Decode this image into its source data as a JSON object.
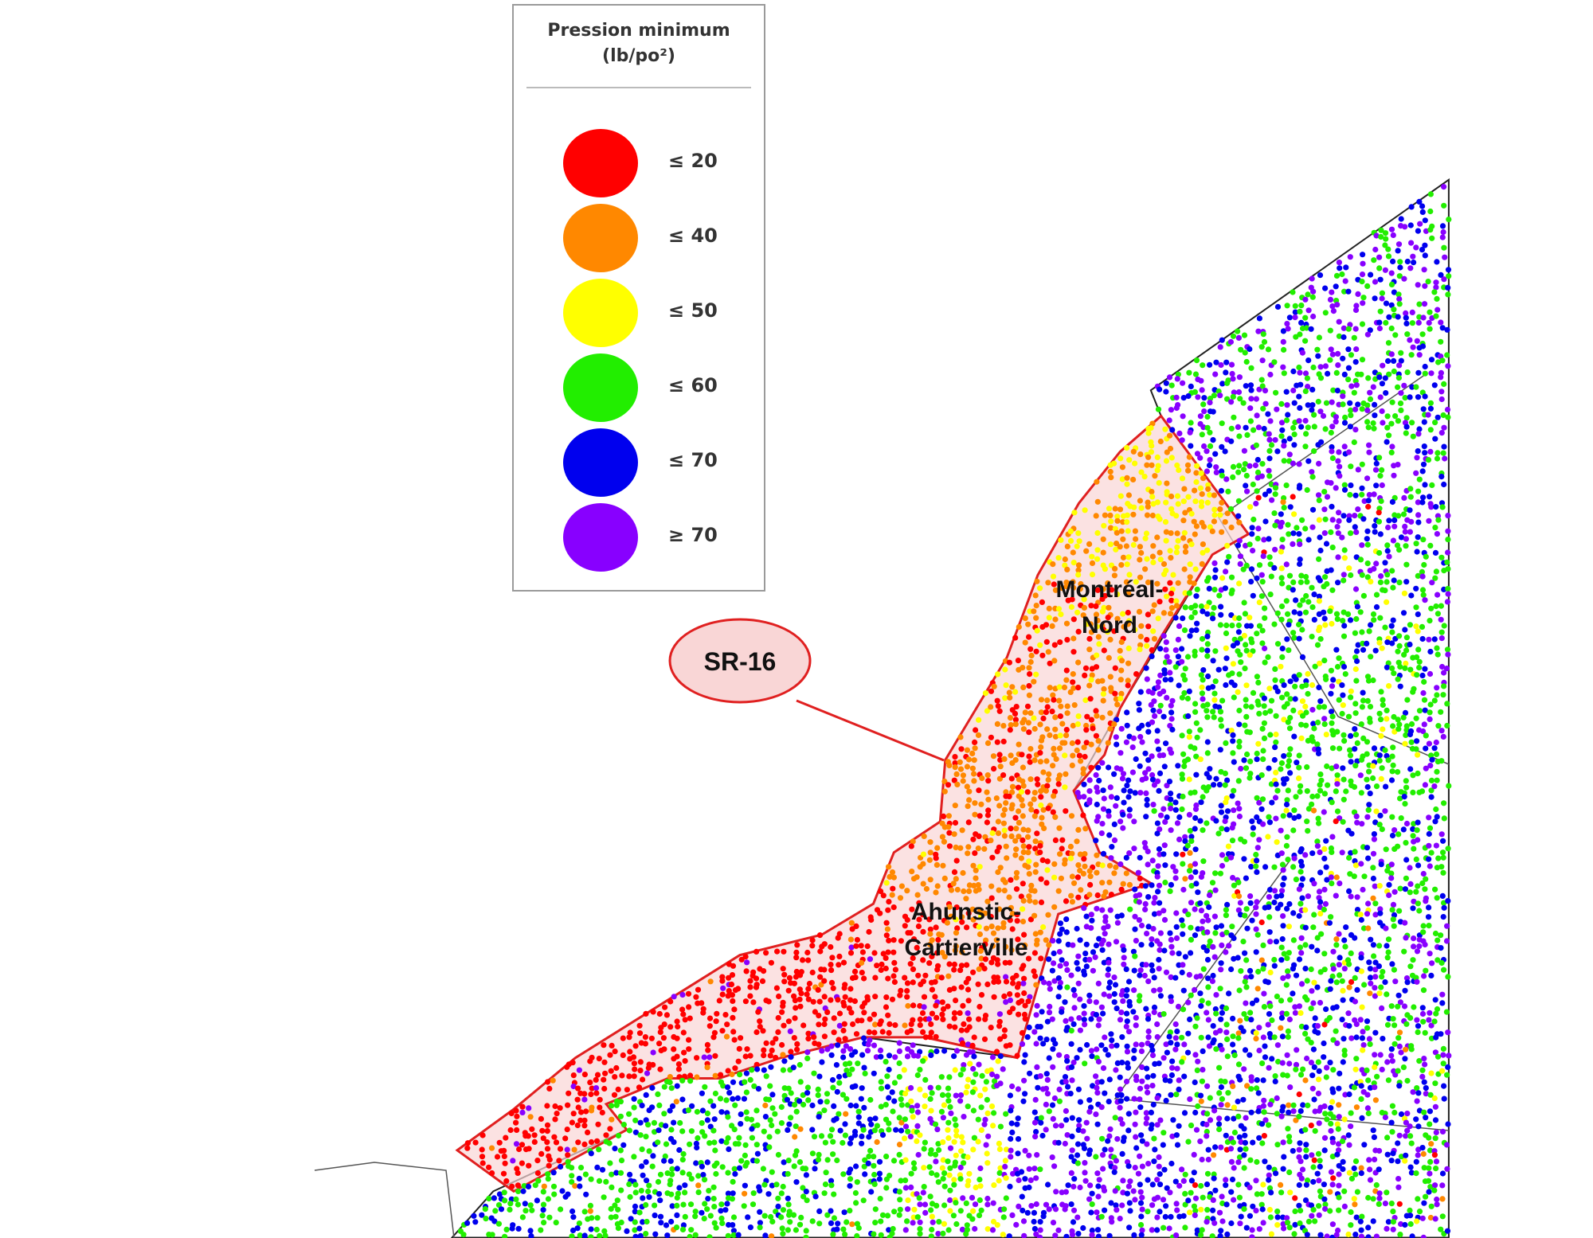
{
  "legend": {
    "title_line1": "Pression minimum",
    "title_line2": "(lb/po²)",
    "items": [
      {
        "label": "≤ 20",
        "color": "#ff0000"
      },
      {
        "label": "≤ 40",
        "color": "#ff8800"
      },
      {
        "label": "≤ 50",
        "color": "#ffff00"
      },
      {
        "label": "≤ 60",
        "color": "#22ee00"
      },
      {
        "label": "≤ 70",
        "color": "#0000ee"
      },
      {
        "label": "≥ 70",
        "color": "#8800ff"
      }
    ]
  },
  "map": {
    "sector_label": "SR-16",
    "sector_outline_color": "#e02020",
    "sector_fill_color": "#f9d6d6",
    "regions": [
      {
        "line1": "Montréal-",
        "line2": "Nord"
      },
      {
        "line1": "Ahunstic-",
        "line2": "Cartierville"
      }
    ]
  }
}
